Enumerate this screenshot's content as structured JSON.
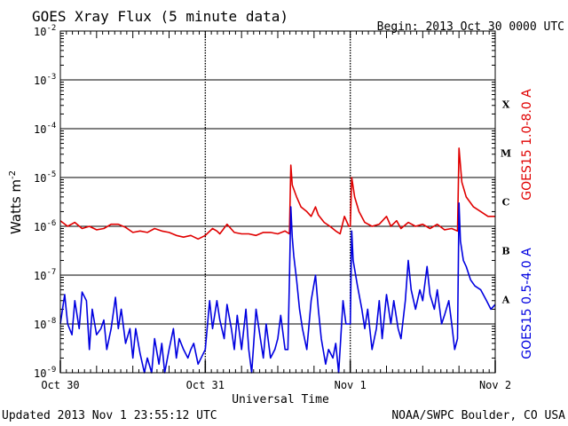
{
  "chart_data": {
    "type": "line",
    "title": "GOES Xray Flux (5 minute data)",
    "begin_label": "Begin:  2013 Oct 30 0000 UTC",
    "xlabel": "Universal Time",
    "ylabel": "Watts m",
    "ylabel_sup": "-2",
    "y_scale": "log",
    "ylim": [
      1e-09,
      0.01
    ],
    "x_range_days": [
      0,
      3
    ],
    "x_ticks": [
      {
        "day": 0,
        "label": "Oct 30"
      },
      {
        "day": 1,
        "label": "Oct 31"
      },
      {
        "day": 2,
        "label": "Nov 1"
      },
      {
        "day": 3,
        "label": "Nov 2"
      }
    ],
    "y_ticks": [
      {
        "exp": -2,
        "base": "10",
        "sup": "-2"
      },
      {
        "exp": -3,
        "base": "10",
        "sup": "-3"
      },
      {
        "exp": -4,
        "base": "10",
        "sup": "-4"
      },
      {
        "exp": -5,
        "base": "10",
        "sup": "-5"
      },
      {
        "exp": -6,
        "base": "10",
        "sup": "-6"
      },
      {
        "exp": -7,
        "base": "10",
        "sup": "-7"
      },
      {
        "exp": -8,
        "base": "10",
        "sup": "-8"
      },
      {
        "exp": -9,
        "base": "10",
        "sup": "-9"
      }
    ],
    "flare_classes": [
      {
        "label": "X",
        "exp": -4
      },
      {
        "label": "M",
        "exp": -5
      },
      {
        "label": "C",
        "exp": -6
      },
      {
        "label": "B",
        "exp": -7
      },
      {
        "label": "A",
        "exp": -8
      }
    ],
    "grid": "horizontal lines at decades, dotted vertical lines at day boundaries",
    "series": [
      {
        "name": "GOES15 1.0-8.0 A",
        "color": "#e00000",
        "points": [
          [
            0.0,
            1.3e-06
          ],
          [
            0.05,
            1e-06
          ],
          [
            0.1,
            1.2e-06
          ],
          [
            0.15,
            9e-07
          ],
          [
            0.2,
            1e-06
          ],
          [
            0.25,
            8.5e-07
          ],
          [
            0.3,
            9e-07
          ],
          [
            0.35,
            1.1e-06
          ],
          [
            0.4,
            1.1e-06
          ],
          [
            0.45,
            9.5e-07
          ],
          [
            0.5,
            7.5e-07
          ],
          [
            0.55,
            8e-07
          ],
          [
            0.6,
            7.5e-07
          ],
          [
            0.65,
            9e-07
          ],
          [
            0.7,
            8e-07
          ],
          [
            0.75,
            7.5e-07
          ],
          [
            0.8,
            6.5e-07
          ],
          [
            0.85,
            6e-07
          ],
          [
            0.9,
            6.5e-07
          ],
          [
            0.95,
            5.5e-07
          ],
          [
            1.0,
            6.5e-07
          ],
          [
            1.05,
            9e-07
          ],
          [
            1.08,
            8e-07
          ],
          [
            1.1,
            7e-07
          ],
          [
            1.15,
            1.1e-06
          ],
          [
            1.2,
            7.5e-07
          ],
          [
            1.25,
            7e-07
          ],
          [
            1.3,
            7e-07
          ],
          [
            1.35,
            6.5e-07
          ],
          [
            1.4,
            7.5e-07
          ],
          [
            1.45,
            7.5e-07
          ],
          [
            1.5,
            7e-07
          ],
          [
            1.55,
            8e-07
          ],
          [
            1.58,
            7e-07
          ],
          [
            1.59,
            1.8e-05
          ],
          [
            1.6,
            7e-06
          ],
          [
            1.63,
            4e-06
          ],
          [
            1.66,
            2.5e-06
          ],
          [
            1.7,
            2e-06
          ],
          [
            1.73,
            1.6e-06
          ],
          [
            1.76,
            2.5e-06
          ],
          [
            1.78,
            1.7e-06
          ],
          [
            1.82,
            1.2e-06
          ],
          [
            1.86,
            1e-06
          ],
          [
            1.9,
            8e-07
          ],
          [
            1.93,
            7e-07
          ],
          [
            1.96,
            1.6e-06
          ],
          [
            1.99,
            1e-06
          ],
          [
            2.0,
            1e-06
          ],
          [
            2.01,
            1e-05
          ],
          [
            2.03,
            4e-06
          ],
          [
            2.06,
            2e-06
          ],
          [
            2.1,
            1.2e-06
          ],
          [
            2.15,
            1e-06
          ],
          [
            2.2,
            1.1e-06
          ],
          [
            2.25,
            1.6e-06
          ],
          [
            2.28,
            1e-06
          ],
          [
            2.32,
            1.3e-06
          ],
          [
            2.35,
            9e-07
          ],
          [
            2.4,
            1.2e-06
          ],
          [
            2.45,
            1e-06
          ],
          [
            2.5,
            1.1e-06
          ],
          [
            2.55,
            9e-07
          ],
          [
            2.6,
            1.1e-06
          ],
          [
            2.65,
            8.5e-07
          ],
          [
            2.7,
            9e-07
          ],
          [
            2.74,
            8e-07
          ],
          [
            2.75,
            4e-05
          ],
          [
            2.77,
            8e-06
          ],
          [
            2.8,
            4e-06
          ],
          [
            2.85,
            2.5e-06
          ],
          [
            2.9,
            2e-06
          ],
          [
            2.95,
            1.6e-06
          ],
          [
            3.0,
            1.6e-06
          ]
        ]
      },
      {
        "name": "GOES15 0.5-4.0 A",
        "color": "#0000e0",
        "points": [
          [
            0.0,
            1e-08
          ],
          [
            0.03,
            4e-08
          ],
          [
            0.05,
            1e-08
          ],
          [
            0.08,
            6e-09
          ],
          [
            0.1,
            3e-08
          ],
          [
            0.13,
            8e-09
          ],
          [
            0.15,
            4.5e-08
          ],
          [
            0.18,
            3e-08
          ],
          [
            0.2,
            3e-09
          ],
          [
            0.22,
            2e-08
          ],
          [
            0.25,
            6e-09
          ],
          [
            0.28,
            8e-09
          ],
          [
            0.3,
            1.2e-08
          ],
          [
            0.32,
            3e-09
          ],
          [
            0.35,
            8e-09
          ],
          [
            0.38,
            3.5e-08
          ],
          [
            0.4,
            8e-09
          ],
          [
            0.42,
            2e-08
          ],
          [
            0.45,
            4e-09
          ],
          [
            0.48,
            8e-09
          ],
          [
            0.5,
            2e-09
          ],
          [
            0.52,
            8e-09
          ],
          [
            0.55,
            2.5e-09
          ],
          [
            0.58,
            1e-09
          ],
          [
            0.6,
            2e-09
          ],
          [
            0.63,
            1e-09
          ],
          [
            0.65,
            5e-09
          ],
          [
            0.68,
            1.5e-09
          ],
          [
            0.7,
            4e-09
          ],
          [
            0.72,
            1e-09
          ],
          [
            0.75,
            3e-09
          ],
          [
            0.78,
            8e-09
          ],
          [
            0.8,
            2e-09
          ],
          [
            0.82,
            5e-09
          ],
          [
            0.85,
            3e-09
          ],
          [
            0.88,
            2e-09
          ],
          [
            0.9,
            3e-09
          ],
          [
            0.92,
            4e-09
          ],
          [
            0.95,
            1.5e-09
          ],
          [
            1.0,
            3e-09
          ],
          [
            1.03,
            3e-08
          ],
          [
            1.05,
            8e-09
          ],
          [
            1.08,
            3e-08
          ],
          [
            1.1,
            1.2e-08
          ],
          [
            1.13,
            5e-09
          ],
          [
            1.15,
            2.5e-08
          ],
          [
            1.18,
            8e-09
          ],
          [
            1.2,
            3e-09
          ],
          [
            1.22,
            1.5e-08
          ],
          [
            1.25,
            3e-09
          ],
          [
            1.28,
            2e-08
          ],
          [
            1.3,
            3e-09
          ],
          [
            1.32,
            1e-09
          ],
          [
            1.35,
            2e-08
          ],
          [
            1.38,
            5e-09
          ],
          [
            1.4,
            2e-09
          ],
          [
            1.42,
            1e-08
          ],
          [
            1.45,
            2e-09
          ],
          [
            1.48,
            3e-09
          ],
          [
            1.5,
            5e-09
          ],
          [
            1.52,
            1.5e-08
          ],
          [
            1.55,
            3e-09
          ],
          [
            1.57,
            3e-09
          ],
          [
            1.58,
            8e-08
          ],
          [
            1.59,
            2.5e-06
          ],
          [
            1.6,
            6e-07
          ],
          [
            1.61,
            2.5e-07
          ],
          [
            1.63,
            8e-08
          ],
          [
            1.65,
            2e-08
          ],
          [
            1.67,
            8e-09
          ],
          [
            1.7,
            3e-09
          ],
          [
            1.73,
            3e-08
          ],
          [
            1.76,
            1e-07
          ],
          [
            1.78,
            2e-08
          ],
          [
            1.8,
            5e-09
          ],
          [
            1.83,
            1.5e-09
          ],
          [
            1.85,
            3e-09
          ],
          [
            1.88,
            2e-09
          ],
          [
            1.9,
            4e-09
          ],
          [
            1.92,
            1e-09
          ],
          [
            1.95,
            3e-08
          ],
          [
            1.97,
            1e-08
          ],
          [
            2.0,
            1e-08
          ],
          [
            2.01,
            8e-07
          ],
          [
            2.02,
            2e-07
          ],
          [
            2.05,
            6e-08
          ],
          [
            2.08,
            2e-08
          ],
          [
            2.1,
            8e-09
          ],
          [
            2.12,
            2e-08
          ],
          [
            2.15,
            3e-09
          ],
          [
            2.18,
            8e-09
          ],
          [
            2.2,
            3e-08
          ],
          [
            2.22,
            5e-09
          ],
          [
            2.25,
            4e-08
          ],
          [
            2.28,
            1e-08
          ],
          [
            2.3,
            3e-08
          ],
          [
            2.33,
            8e-09
          ],
          [
            2.35,
            5e-09
          ],
          [
            2.38,
            3e-08
          ],
          [
            2.4,
            2e-07
          ],
          [
            2.42,
            5e-08
          ],
          [
            2.45,
            2e-08
          ],
          [
            2.48,
            5e-08
          ],
          [
            2.5,
            3e-08
          ],
          [
            2.53,
            1.5e-07
          ],
          [
            2.55,
            4e-08
          ],
          [
            2.58,
            2e-08
          ],
          [
            2.6,
            5e-08
          ],
          [
            2.63,
            1e-08
          ],
          [
            2.65,
            1.5e-08
          ],
          [
            2.68,
            3e-08
          ],
          [
            2.7,
            1e-08
          ],
          [
            2.72,
            3e-09
          ],
          [
            2.74,
            5e-09
          ],
          [
            2.75,
            3e-06
          ],
          [
            2.76,
            5e-07
          ],
          [
            2.78,
            2e-07
          ],
          [
            2.8,
            1.5e-07
          ],
          [
            2.83,
            8e-08
          ],
          [
            2.86,
            6e-08
          ],
          [
            2.9,
            5e-08
          ],
          [
            2.94,
            3e-08
          ],
          [
            2.97,
            2e-08
          ],
          [
            3.0,
            2.5e-08
          ]
        ]
      }
    ],
    "updated_label": "Updated 2013 Nov  1 23:55:12 UTC",
    "credit_label": "NOAA/SWPC Boulder, CO USA"
  }
}
